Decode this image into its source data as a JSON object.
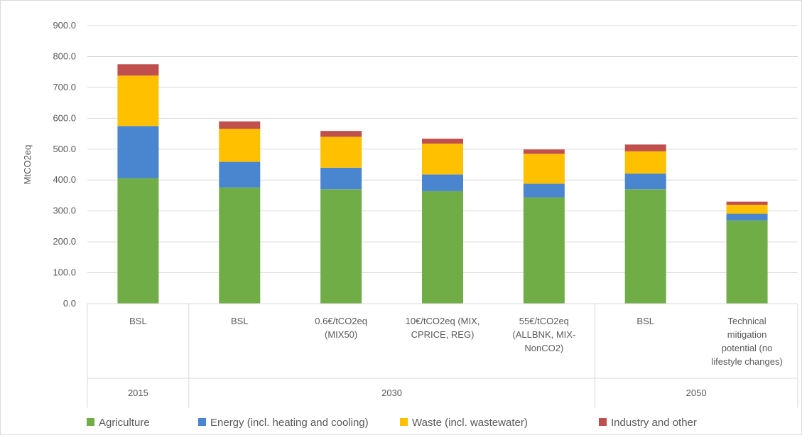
{
  "chart_data": {
    "type": "bar",
    "stacked": true,
    "ylabel": "MtCO2eq",
    "ylim": [
      0,
      900
    ],
    "yticks": [
      "0.0",
      "100.0",
      "200.0",
      "300.0",
      "400.0",
      "500.0",
      "600.0",
      "700.0",
      "800.0",
      "900.0"
    ],
    "grid": true,
    "legend": "bottom",
    "categories": [
      [
        "BSL"
      ],
      [
        "BSL"
      ],
      [
        "0.6€/tCO2eq",
        "(MIX50)"
      ],
      [
        "10€/tCO2eq (MIX,",
        "CPRICE, REG)"
      ],
      [
        "55€/tCO2eq",
        "(ALLBNK,  MIX-",
        "NonCO2)"
      ],
      [
        "BSL"
      ],
      [
        "Technical",
        "mitigation",
        "potential (no",
        "lifestyle changes)"
      ]
    ],
    "groups": [
      {
        "label": "2015",
        "span": 1
      },
      {
        "label": "2030",
        "span": 4
      },
      {
        "label": "2050",
        "span": 2
      }
    ],
    "series": [
      {
        "name": "Agriculture",
        "color": "#70ad47",
        "values": [
          406,
          376,
          370,
          364,
          344,
          370,
          269
        ]
      },
      {
        "name": "Energy (incl. heating and cooling)",
        "color": "#4a86cf",
        "values": [
          169,
          83,
          70,
          54,
          44,
          51,
          22
        ]
      },
      {
        "name": "Waste (incl. wastewater)",
        "color": "#ffc000",
        "values": [
          163,
          107,
          100,
          100,
          97,
          72,
          29
        ]
      },
      {
        "name": "Industry and other",
        "color": "#c0504d",
        "values": [
          37,
          24,
          19,
          16,
          14,
          22,
          10
        ]
      }
    ]
  }
}
